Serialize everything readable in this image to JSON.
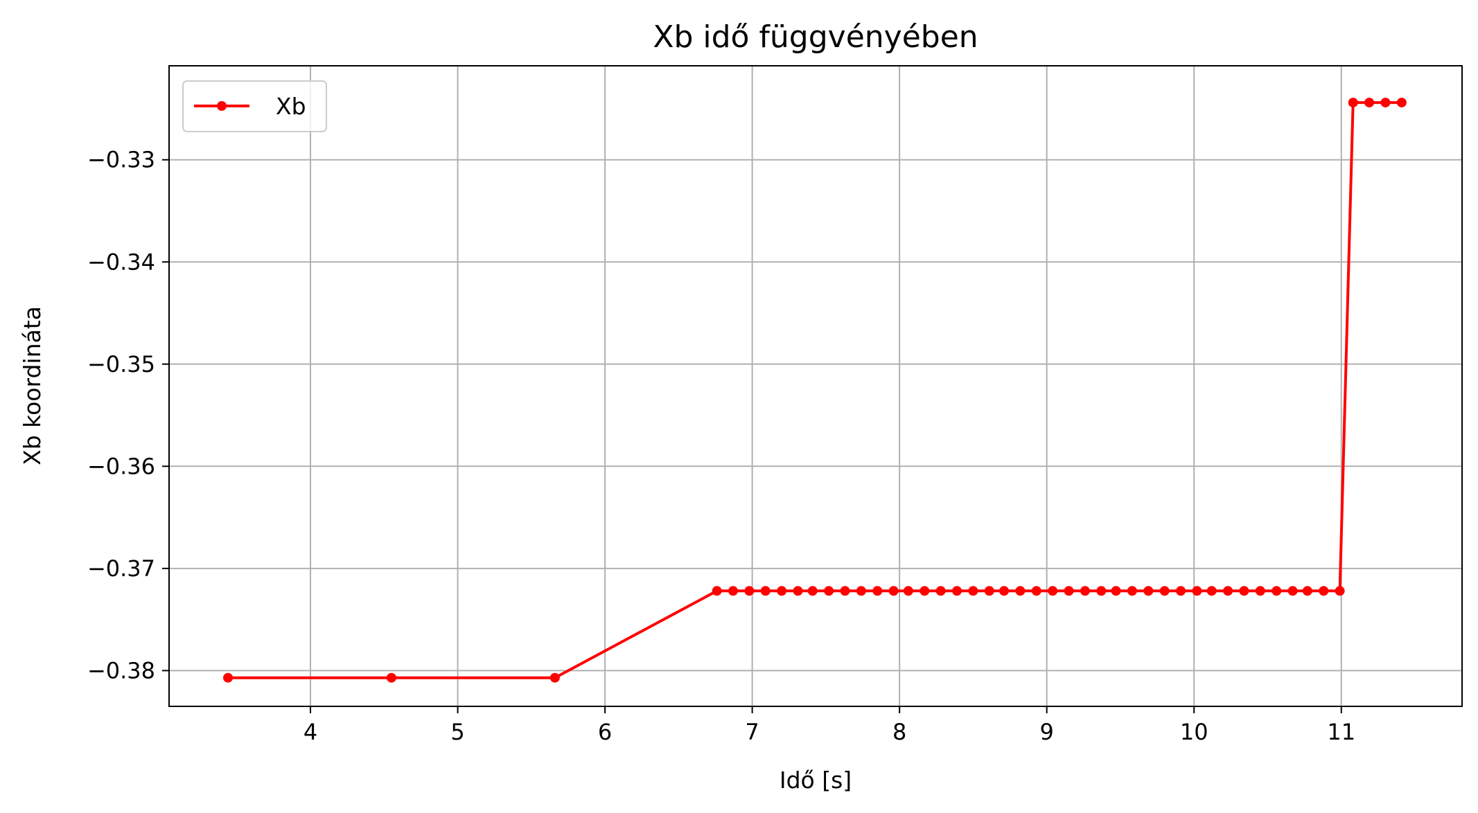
{
  "chart_data": {
    "type": "line",
    "title": "Xb idő függvényében",
    "xlabel": "Idő [s]",
    "ylabel": "Xb koordináta",
    "xlim": [
      3.04,
      11.82
    ],
    "ylim": [
      -0.3835,
      -0.3208
    ],
    "xticks": [
      4,
      5,
      6,
      7,
      8,
      9,
      10,
      11
    ],
    "yticks": [
      -0.33,
      -0.34,
      -0.35,
      -0.36,
      -0.37,
      -0.38
    ],
    "xtick_labels": [
      "4",
      "5",
      "6",
      "7",
      "8",
      "9",
      "10",
      "11"
    ],
    "ytick_labels": [
      "−0.33",
      "−0.34",
      "−0.35",
      "−0.36",
      "−0.37",
      "−0.38"
    ],
    "grid": true,
    "legend_position": "top-left",
    "series": [
      {
        "name": "Xb",
        "color": "#ff0000",
        "marker": "circle",
        "x": [
          3.44,
          4.55,
          5.66,
          6.76,
          6.87,
          6.98,
          7.09,
          7.2,
          7.31,
          7.41,
          7.52,
          7.63,
          7.74,
          7.85,
          7.96,
          8.06,
          8.17,
          8.28,
          8.39,
          8.5,
          8.61,
          8.71,
          8.82,
          8.93,
          9.04,
          9.15,
          9.26,
          9.37,
          9.47,
          9.58,
          9.69,
          9.8,
          9.91,
          10.02,
          10.12,
          10.23,
          10.34,
          10.45,
          10.56,
          10.67,
          10.77,
          10.88,
          10.99,
          11.08,
          11.19,
          11.3,
          11.41
        ],
        "y": [
          -0.3807,
          -0.3807,
          -0.3807,
          -0.3722,
          -0.3722,
          -0.3722,
          -0.3722,
          -0.3722,
          -0.3722,
          -0.3722,
          -0.3722,
          -0.3722,
          -0.3722,
          -0.3722,
          -0.3722,
          -0.3722,
          -0.3722,
          -0.3722,
          -0.3722,
          -0.3722,
          -0.3722,
          -0.3722,
          -0.3722,
          -0.3722,
          -0.3722,
          -0.3722,
          -0.3722,
          -0.3722,
          -0.3722,
          -0.3722,
          -0.3722,
          -0.3722,
          -0.3722,
          -0.3722,
          -0.3722,
          -0.3722,
          -0.3722,
          -0.3722,
          -0.3722,
          -0.3722,
          -0.3722,
          -0.3722,
          -0.3722,
          -0.3244,
          -0.3244,
          -0.3244,
          -0.3244
        ]
      }
    ]
  }
}
